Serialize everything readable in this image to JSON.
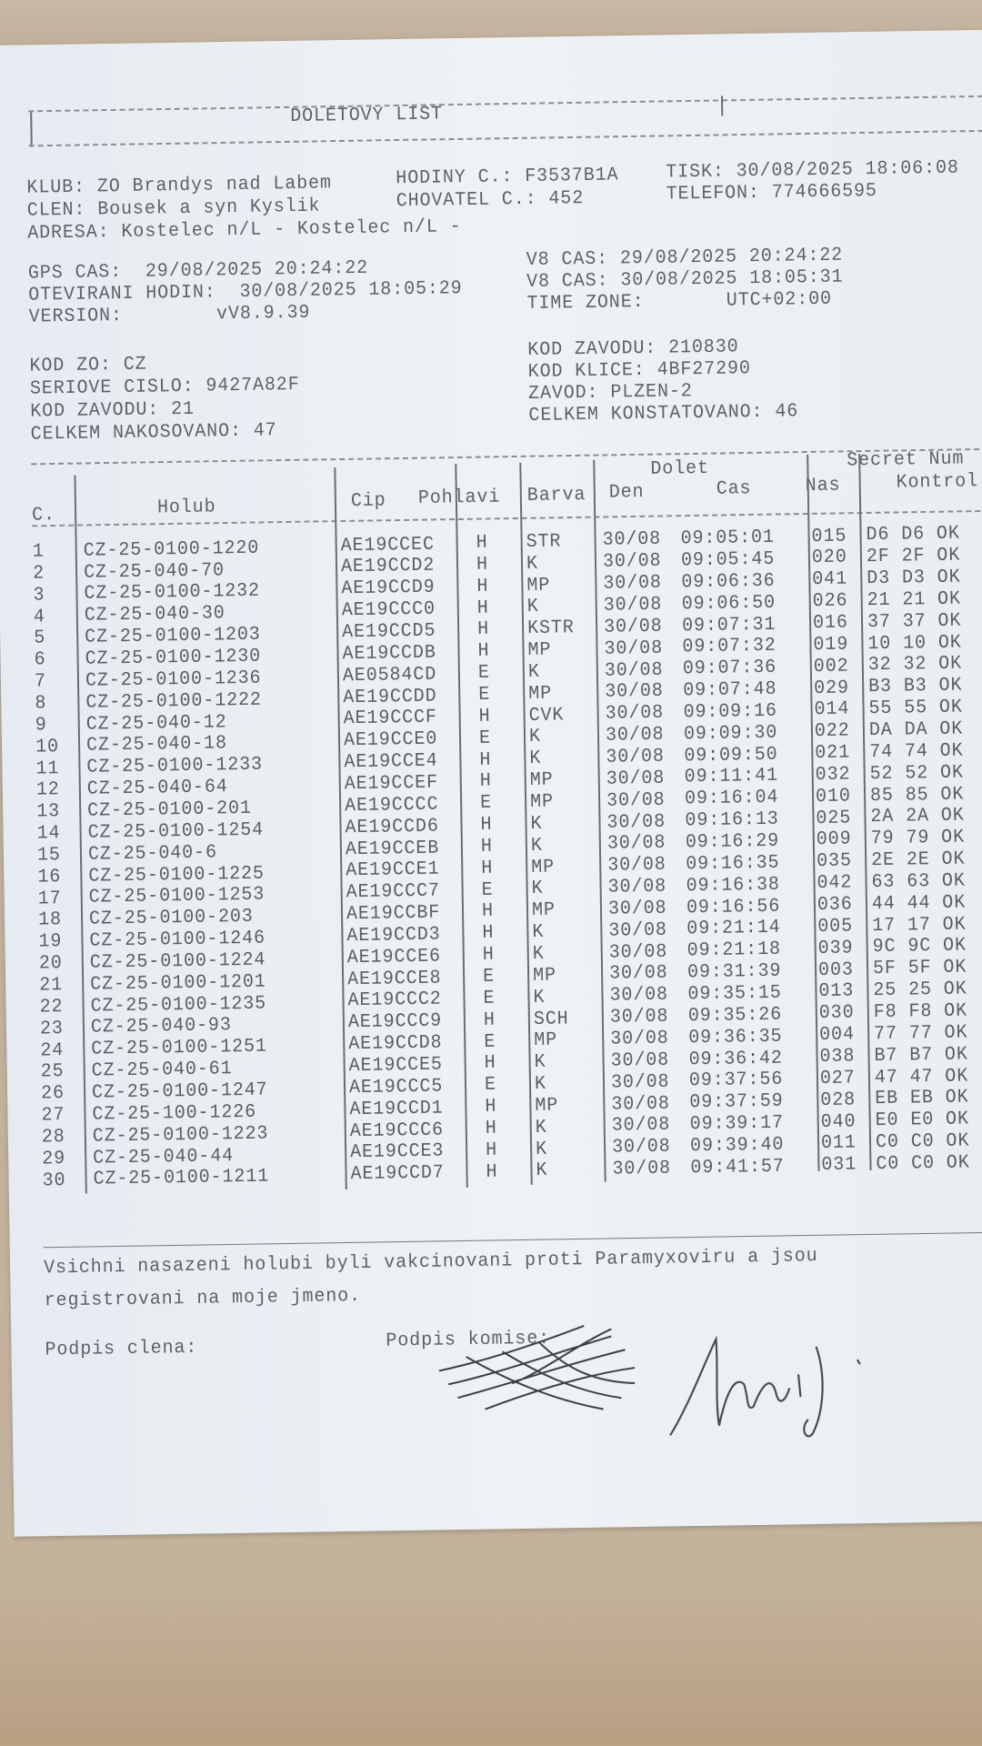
{
  "title": "DOLETOVY LIST",
  "header": {
    "klub": "KLUB: ZO Brandys nad Labem",
    "hodiny": "HODINY C.: F3537B1A",
    "tisk": "TISK: 30/08/2025 18:06:08",
    "clen": "CLEN: Bousek a syn Kyslik",
    "chovatel": "CHOVATEL C.: 452",
    "telefon": "TELEFON: 774666595",
    "adresa": "ADRESA: Kostelec n/L - Kostelec n/L -"
  },
  "times": {
    "gps_cas": "GPS CAS:  29/08/2025 20:24:22",
    "oteviranni_hodin": "OTEVIRANI HODIN:  30/08/2025 18:05:29",
    "version": "VERSION:        vV8.9.39",
    "v8_cas_1": "V8 CAS: 29/08/2025 20:24:22",
    "v8_cas_2": "V8 CAS: 30/08/2025 18:05:31",
    "time_zone": "TIME ZONE:       UTC+02:00"
  },
  "race": {
    "kod_zo": "KOD ZO: CZ",
    "seriove_cislo": "SERIOVE CISLO: 9427A82F",
    "kod_zavodu_left": "KOD ZAVODU: 21",
    "celkem_nakosovano": "CELKEM NAKOSOVANO: 47",
    "kod_zavodu_right": "KOD ZAVODU: 210830",
    "kod_klice": "KOD KLICE: 4BF27290",
    "zavod": "ZAVOD: PLZEN-2",
    "celkem_konstatovano": "CELKEM KONSTATOVANO: 46"
  },
  "table": {
    "group_headers": {
      "dolet": "Dolet",
      "secret": "Secret Num"
    },
    "columns": {
      "c": "C.",
      "holub": "Holub",
      "cip": "Cip",
      "pohlavi": "Pohlavi",
      "barva": "Barva",
      "den": "Den",
      "cas": "Cas",
      "nas": "Nas",
      "kontrol": "Kontrol"
    },
    "rows": [
      [
        "1",
        "CZ-25-0100-1220",
        "AE19CCEC",
        "H",
        "STR",
        "30/08",
        "09:05:01",
        "015",
        "D6 D6 OK"
      ],
      [
        "2",
        "CZ-25-040-70",
        "AE19CCD2",
        "H",
        "K",
        "30/08",
        "09:05:45",
        "020",
        "2F 2F OK"
      ],
      [
        "3",
        "CZ-25-0100-1232",
        "AE19CCD9",
        "H",
        "MP",
        "30/08",
        "09:06:36",
        "041",
        "D3 D3 OK"
      ],
      [
        "4",
        "CZ-25-040-30",
        "AE19CCC0",
        "H",
        "K",
        "30/08",
        "09:06:50",
        "026",
        "21 21 OK"
      ],
      [
        "5",
        "CZ-25-0100-1203",
        "AE19CCD5",
        "H",
        "KSTR",
        "30/08",
        "09:07:31",
        "016",
        "37 37 OK"
      ],
      [
        "6",
        "CZ-25-0100-1230",
        "AE19CCDB",
        "H",
        "MP",
        "30/08",
        "09:07:32",
        "019",
        "10 10 OK"
      ],
      [
        "7",
        "CZ-25-0100-1236",
        "AE0584CD",
        "E",
        "K",
        "30/08",
        "09:07:36",
        "002",
        "32 32 OK"
      ],
      [
        "8",
        "CZ-25-0100-1222",
        "AE19CCDD",
        "E",
        "MP",
        "30/08",
        "09:07:48",
        "029",
        "B3 B3 OK"
      ],
      [
        "9",
        "CZ-25-040-12",
        "AE19CCCF",
        "H",
        "CVK",
        "30/08",
        "09:09:16",
        "014",
        "55 55 OK"
      ],
      [
        "10",
        "CZ-25-040-18",
        "AE19CCE0",
        "E",
        "K",
        "30/08",
        "09:09:30",
        "022",
        "DA DA OK"
      ],
      [
        "11",
        "CZ-25-0100-1233",
        "AE19CCE4",
        "H",
        "K",
        "30/08",
        "09:09:50",
        "021",
        "74 74 OK"
      ],
      [
        "12",
        "CZ-25-040-64",
        "AE19CCEF",
        "H",
        "MP",
        "30/08",
        "09:11:41",
        "032",
        "52 52 OK"
      ],
      [
        "13",
        "CZ-25-0100-201",
        "AE19CCCC",
        "E",
        "MP",
        "30/08",
        "09:16:04",
        "010",
        "85 85 OK"
      ],
      [
        "14",
        "CZ-25-0100-1254",
        "AE19CCD6",
        "H",
        "K",
        "30/08",
        "09:16:13",
        "025",
        "2A 2A OK"
      ],
      [
        "15",
        "CZ-25-040-6",
        "AE19CCEB",
        "H",
        "K",
        "30/08",
        "09:16:29",
        "009",
        "79 79 OK"
      ],
      [
        "16",
        "CZ-25-0100-1225",
        "AE19CCE1",
        "H",
        "MP",
        "30/08",
        "09:16:35",
        "035",
        "2E 2E OK"
      ],
      [
        "17",
        "CZ-25-0100-1253",
        "AE19CCC7",
        "E",
        "K",
        "30/08",
        "09:16:38",
        "042",
        "63 63 OK"
      ],
      [
        "18",
        "CZ-25-0100-203",
        "AE19CCBF",
        "H",
        "MP",
        "30/08",
        "09:16:56",
        "036",
        "44 44 OK"
      ],
      [
        "19",
        "CZ-25-0100-1246",
        "AE19CCD3",
        "H",
        "K",
        "30/08",
        "09:21:14",
        "005",
        "17 17 OK"
      ],
      [
        "20",
        "CZ-25-0100-1224",
        "AE19CCE6",
        "H",
        "K",
        "30/08",
        "09:21:18",
        "039",
        "9C 9C OK"
      ],
      [
        "21",
        "CZ-25-0100-1201",
        "AE19CCE8",
        "E",
        "MP",
        "30/08",
        "09:31:39",
        "003",
        "5F 5F OK"
      ],
      [
        "22",
        "CZ-25-0100-1235",
        "AE19CCC2",
        "E",
        "K",
        "30/08",
        "09:35:15",
        "013",
        "25 25 OK"
      ],
      [
        "23",
        "CZ-25-040-93",
        "AE19CCC9",
        "H",
        "SCH",
        "30/08",
        "09:35:26",
        "030",
        "F8 F8 OK"
      ],
      [
        "24",
        "CZ-25-0100-1251",
        "AE19CCD8",
        "E",
        "MP",
        "30/08",
        "09:36:35",
        "004",
        "77 77 OK"
      ],
      [
        "25",
        "CZ-25-040-61",
        "AE19CCE5",
        "H",
        "K",
        "30/08",
        "09:36:42",
        "038",
        "B7 B7 OK"
      ],
      [
        "26",
        "CZ-25-0100-1247",
        "AE19CCC5",
        "E",
        "K",
        "30/08",
        "09:37:56",
        "027",
        "47 47 OK"
      ],
      [
        "27",
        "CZ-25-100-1226",
        "AE19CCD1",
        "H",
        "MP",
        "30/08",
        "09:37:59",
        "028",
        "EB EB OK"
      ],
      [
        "28",
        "CZ-25-0100-1223",
        "AE19CCC6",
        "H",
        "K",
        "30/08",
        "09:39:17",
        "040",
        "E0 E0 OK"
      ],
      [
        "29",
        "CZ-25-040-44",
        "AE19CCE3",
        "H",
        "K",
        "30/08",
        "09:39:40",
        "011",
        "C0 C0 OK"
      ],
      [
        "30",
        "CZ-25-0100-1211",
        "AE19CCD7",
        "H",
        "K",
        "30/08",
        "09:41:57",
        "031",
        "C0 C0 OK"
      ]
    ]
  },
  "footer": {
    "declaration_line1": "Vsichni nasazeni holubi byli vakcinovani proti Paramyxoviru a jsou",
    "declaration_line2": "registrovani na moje jmeno.",
    "podpis_clena": "Podpis clena:",
    "podpis_komise": "Podpis komise:"
  },
  "colors": {
    "paper": "#e9eef3",
    "ink": "#5e6268",
    "background": "#c4b39c"
  }
}
